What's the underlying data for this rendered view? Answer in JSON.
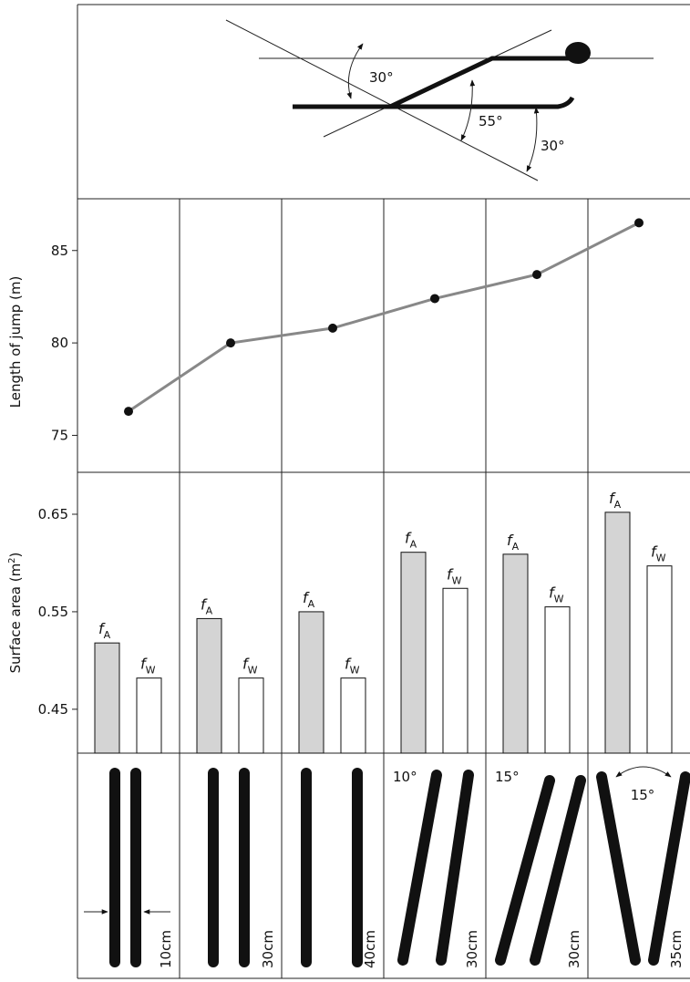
{
  "chart_data": [
    {
      "type": "line",
      "ylabel": "Length of jump (m)",
      "categories": [
        null,
        null,
        null,
        null,
        null,
        null
      ],
      "series": [
        {
          "color": "#888888",
          "values": [
            76.3,
            80.0,
            80.8,
            82.4,
            83.7,
            86.5
          ]
        }
      ],
      "ylim": [
        73,
        87.8
      ],
      "yticks": [
        75,
        80,
        85
      ]
    },
    {
      "type": "bar",
      "ylabel": "Surface area (m",
      "ylabel_superscript": "2",
      "ylabel_end": ")",
      "categories": [
        null,
        null,
        null,
        null,
        null,
        null
      ],
      "series": [
        {
          "symbol": "f",
          "subscript": "A",
          "color": "#d4d4d4",
          "values": [
            0.518,
            0.543,
            0.55,
            0.611,
            0.609,
            0.652
          ]
        },
        {
          "symbol": "f",
          "subscript": "W",
          "color": "#ffffff",
          "values": [
            0.482,
            0.482,
            0.482,
            0.574,
            0.555,
            0.597
          ]
        }
      ],
      "ylim": [
        0.405,
        0.693
      ],
      "yticks": [
        0.45,
        0.55,
        0.65
      ]
    }
  ],
  "angle_diagram": {
    "labels": [
      "30°",
      "55°",
      "30°"
    ]
  },
  "ski_positions": [
    {
      "width": "10cm"
    },
    {
      "width": "30cm"
    },
    {
      "width": "40cm"
    },
    {
      "angle": "10°",
      "width": "30cm"
    },
    {
      "angle": "15°",
      "width": "30cm"
    },
    {
      "angle": "15°",
      "width": "35cm"
    }
  ]
}
